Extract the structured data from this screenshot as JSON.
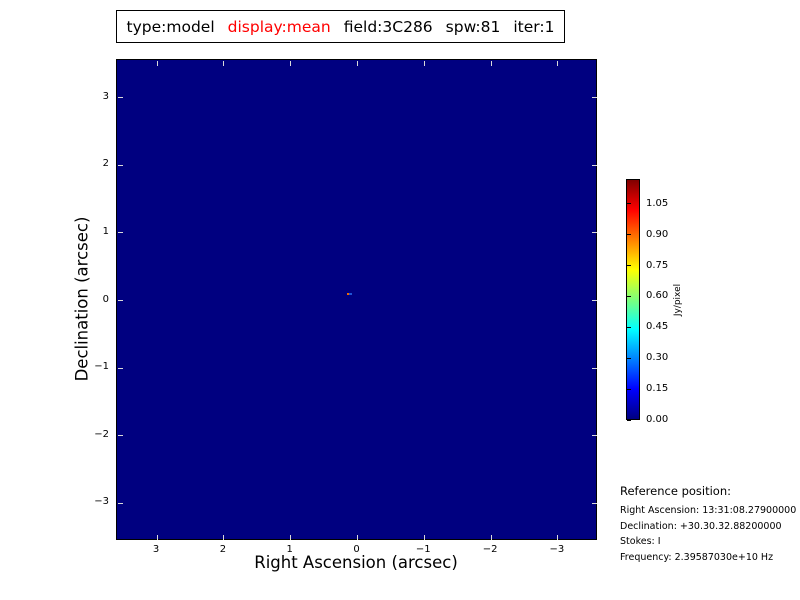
{
  "figure": {
    "title_parts": [
      {
        "text": "type:model",
        "color": "#000000"
      },
      {
        "text": "display:mean",
        "color": "#ff0000"
      },
      {
        "text": "field:3C286",
        "color": "#000000"
      },
      {
        "text": "spw:81",
        "color": "#000000"
      },
      {
        "text": "iter:1",
        "color": "#000000"
      }
    ]
  },
  "chart_data": {
    "type": "heatmap",
    "title": "type:model display:mean field:3C286 spw:81 iter:1",
    "xlabel": "Right Ascension (arcsec)",
    "ylabel": "Declination (arcsec)",
    "xlim": [
      3.6,
      -3.6
    ],
    "ylim": [
      -3.6,
      3.6
    ],
    "x_ticks": [
      {
        "value": 3,
        "label": "3"
      },
      {
        "value": 2,
        "label": "2"
      },
      {
        "value": 1,
        "label": "1"
      },
      {
        "value": 0,
        "label": "0"
      },
      {
        "value": -1,
        "label": "−1"
      },
      {
        "value": -2,
        "label": "−2"
      },
      {
        "value": -3,
        "label": "−3"
      }
    ],
    "y_ticks": [
      {
        "value": 3,
        "label": "3"
      },
      {
        "value": 2,
        "label": "2"
      },
      {
        "value": 1,
        "label": "1"
      },
      {
        "value": 0,
        "label": "0"
      },
      {
        "value": -1,
        "label": "−1"
      },
      {
        "value": -2,
        "label": "−2"
      },
      {
        "value": -3,
        "label": "−3"
      }
    ],
    "grid": false,
    "colormap": "jet",
    "background": {
      "value": 0.0,
      "color": "#000080"
    },
    "source_pixels": [
      {
        "ra_arcsec": 0.14,
        "dec_arcsec": 0.1,
        "color": "#f06800"
      },
      {
        "ra_arcsec": 0.1,
        "dec_arcsec": 0.1,
        "color": "#1f55d6"
      }
    ],
    "colorbar": {
      "label": "Jy/pixel",
      "vmin": 0.0,
      "vmax": 1.17,
      "ticks": [
        {
          "value": 0.0,
          "label": "0.00"
        },
        {
          "value": 0.15,
          "label": "0.15"
        },
        {
          "value": 0.3,
          "label": "0.30"
        },
        {
          "value": 0.45,
          "label": "0.45"
        },
        {
          "value": 0.6,
          "label": "0.60"
        },
        {
          "value": 0.75,
          "label": "0.75"
        },
        {
          "value": 0.9,
          "label": "0.90"
        },
        {
          "value": 1.05,
          "label": "1.05"
        }
      ],
      "position": "right"
    }
  },
  "reference_block": {
    "heading": "Reference position:",
    "lines": [
      "Right Ascension: 13:31:08.27900000",
      "Declination: +30.30.32.88200000",
      "Stokes: I",
      "Frequency: 2.39587030e+10 Hz"
    ]
  }
}
